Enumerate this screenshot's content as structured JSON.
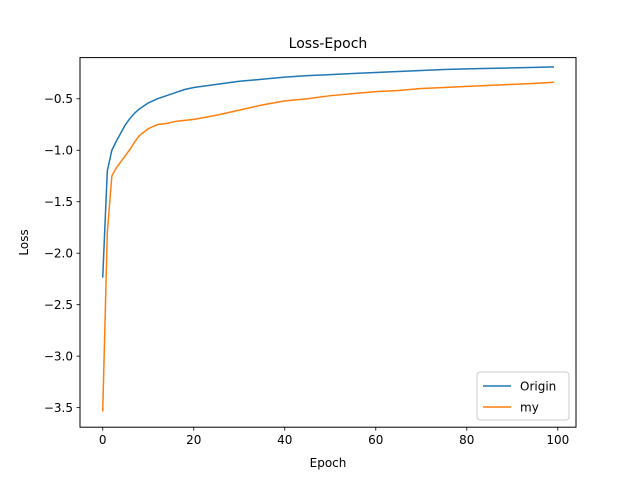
{
  "chart_data": {
    "type": "line",
    "title": "Loss-Epoch",
    "xlabel": "Epoch",
    "ylabel": "Loss",
    "xlim": [
      -5,
      104
    ],
    "ylim": [
      -3.69,
      -0.1
    ],
    "xticks": [
      0,
      20,
      40,
      60,
      80,
      100
    ],
    "xtick_labels": [
      "0",
      "20",
      "40",
      "60",
      "80",
      "100"
    ],
    "yticks": [
      -3.5,
      -3.0,
      -2.5,
      -2.0,
      -1.5,
      -1.0,
      -0.5
    ],
    "ytick_labels": [
      "−3.5",
      "−3.0",
      "−2.5",
      "−2.0",
      "−1.5",
      "−1.0",
      "−0.5"
    ],
    "grid": false,
    "legend_position": "lower-right",
    "series": [
      {
        "name": "Origin",
        "color": "#1f77b4",
        "x": [
          0,
          1,
          2,
          3,
          4,
          5,
          6,
          7,
          8,
          10,
          12,
          14,
          16,
          18,
          20,
          25,
          30,
          35,
          40,
          45,
          50,
          55,
          60,
          65,
          70,
          75,
          80,
          85,
          90,
          95,
          99
        ],
        "y": [
          -2.23,
          -1.2,
          -1.0,
          -0.91,
          -0.83,
          -0.75,
          -0.69,
          -0.64,
          -0.6,
          -0.54,
          -0.5,
          -0.47,
          -0.44,
          -0.41,
          -0.39,
          -0.36,
          -0.33,
          -0.31,
          -0.29,
          -0.275,
          -0.265,
          -0.255,
          -0.245,
          -0.235,
          -0.225,
          -0.215,
          -0.21,
          -0.205,
          -0.2,
          -0.195,
          -0.19
        ]
      },
      {
        "name": "my",
        "color": "#ff7f0e",
        "x": [
          0,
          1,
          2,
          3,
          4,
          5,
          6,
          7,
          8,
          10,
          12,
          14,
          16,
          18,
          20,
          25,
          30,
          35,
          40,
          45,
          50,
          55,
          60,
          65,
          70,
          75,
          80,
          85,
          90,
          95,
          99
        ],
        "y": [
          -3.53,
          -1.8,
          -1.25,
          -1.17,
          -1.11,
          -1.05,
          -0.99,
          -0.92,
          -0.86,
          -0.79,
          -0.75,
          -0.74,
          -0.72,
          -0.71,
          -0.7,
          -0.66,
          -0.61,
          -0.56,
          -0.52,
          -0.5,
          -0.47,
          -0.45,
          -0.43,
          -0.42,
          -0.4,
          -0.39,
          -0.38,
          -0.37,
          -0.36,
          -0.35,
          -0.34
        ]
      }
    ]
  }
}
